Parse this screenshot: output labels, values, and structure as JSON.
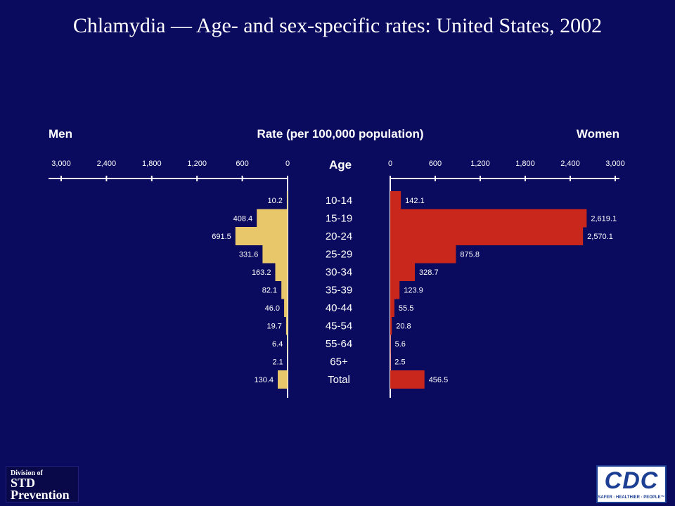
{
  "slide": {
    "title": "Chlamydia — Age- and sex-specific rates: United States, 2002"
  },
  "chart_data": {
    "type": "bar",
    "orientation": "horizontal-butterfly",
    "left_label": "Men",
    "right_label": "Women",
    "axis_title": "Rate (per 100,000 population)",
    "category_label": "Age",
    "categories": [
      "10-14",
      "15-19",
      "20-24",
      "25-29",
      "30-34",
      "35-39",
      "40-44",
      "45-54",
      "55-64",
      "65+",
      "Total"
    ],
    "series": [
      {
        "name": "Men",
        "side": "left",
        "color": "#e8c66a",
        "values": [
          10.2,
          408.4,
          691.5,
          331.6,
          163.2,
          82.1,
          46.0,
          19.7,
          6.4,
          2.1,
          130.4
        ],
        "labels": [
          "10.2",
          "408.4",
          "691.5",
          "331.6",
          "163.2",
          "82.1",
          "46.0",
          "19.7",
          "6.4",
          "2.1",
          "130.4"
        ]
      },
      {
        "name": "Women",
        "side": "right",
        "color": "#c9261c",
        "values": [
          142.1,
          2619.1,
          2570.1,
          875.8,
          328.7,
          123.9,
          55.5,
          20.8,
          5.6,
          2.5,
          456.5
        ],
        "labels": [
          "142.1",
          "2,619.1",
          "2,570.1",
          "875.8",
          "328.7",
          "123.9",
          "55.5",
          "20.8",
          "5.6",
          "2.5",
          "456.5"
        ]
      }
    ],
    "xlim": [
      0,
      3000
    ],
    "ticks_left": [
      "3,000",
      "2,400",
      "1,800",
      "1,200",
      "600",
      "0"
    ],
    "ticks_right": [
      "0",
      "600",
      "1,200",
      "1,800",
      "2,400",
      "3,000"
    ]
  },
  "logos": {
    "std": {
      "line1": "Division of",
      "line2": "STD",
      "line3": "Prevention"
    },
    "cdc": {
      "mark": "CDC",
      "tagline": "SAFER · HEALTHIER · PEOPLE™"
    }
  }
}
